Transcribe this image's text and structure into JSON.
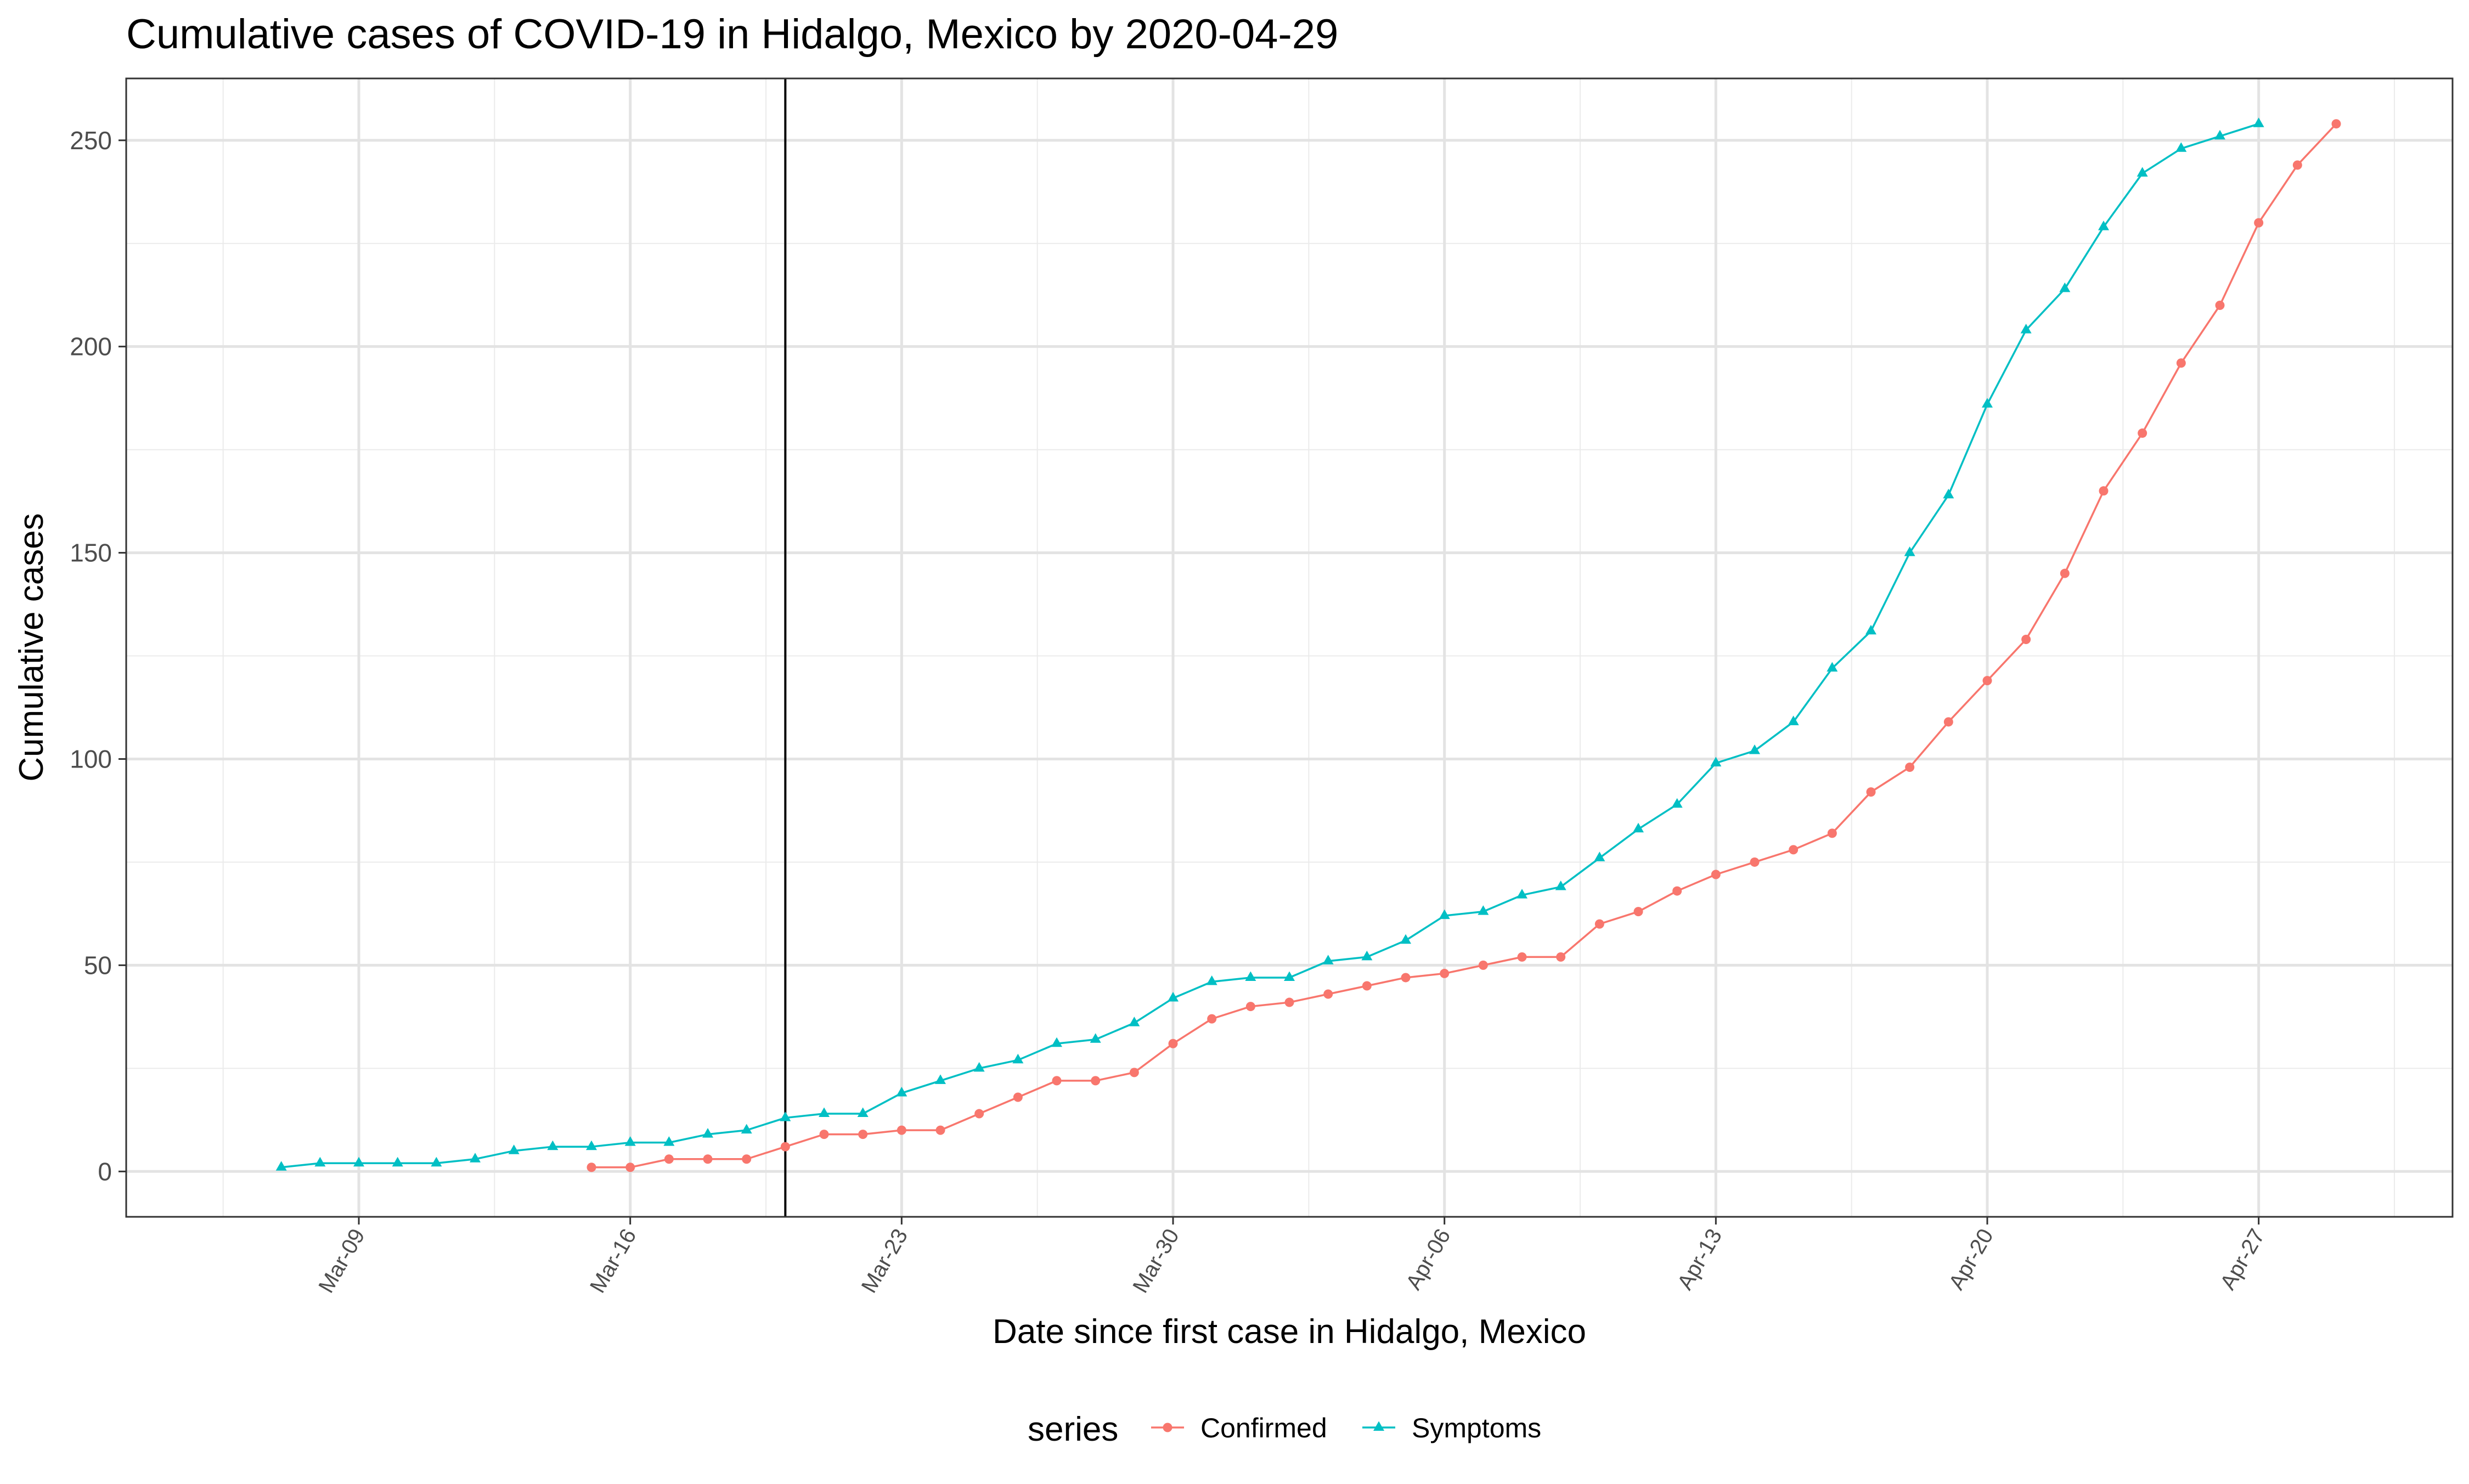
{
  "chart_data": {
    "type": "line",
    "title": "Cumulative cases of COVID-19 in Hidalgo, Mexico by 2020-04-29",
    "xlabel": "Date since first case in Hidalgo, Mexico",
    "ylabel": "Cumulative cases",
    "x_axis_type": "date",
    "xlim": [
      "2020-03-03",
      "2020-05-02"
    ],
    "ylim": [
      -11,
      265
    ],
    "x_tick_dates": [
      "2020-03-09",
      "2020-03-16",
      "2020-03-23",
      "2020-03-30",
      "2020-04-06",
      "2020-04-13",
      "2020-04-20",
      "2020-04-27"
    ],
    "x_tick_labels": [
      "Mar-09",
      "Mar-16",
      "Mar-23",
      "Mar-30",
      "Apr-06",
      "Apr-13",
      "Apr-20",
      "Apr-27"
    ],
    "y_ticks": [
      0,
      50,
      100,
      150,
      200,
      250
    ],
    "y_tick_labels": [
      "0",
      "50",
      "100",
      "150",
      "200",
      "250"
    ],
    "vline_date": "2020-03-20",
    "grid": true,
    "legend_position": "bottom",
    "legend_title": "series",
    "series": [
      {
        "name": "Confirmed",
        "color": "#F8766D",
        "marker": "circle",
        "start_date": "2020-03-15",
        "values": [
          1,
          1,
          3,
          3,
          3,
          6,
          9,
          9,
          10,
          10,
          14,
          18,
          22,
          22,
          24,
          31,
          37,
          40,
          41,
          43,
          45,
          47,
          48,
          50,
          52,
          52,
          60,
          63,
          68,
          72,
          75,
          78,
          82,
          92,
          98,
          109,
          119,
          129,
          145,
          165,
          179,
          196,
          210,
          230,
          244,
          254
        ]
      },
      {
        "name": "Symptoms",
        "color": "#00BFC4",
        "marker": "triangle",
        "start_date": "2020-03-07",
        "values": [
          1,
          2,
          2,
          2,
          2,
          3,
          5,
          6,
          6,
          7,
          7,
          9,
          10,
          13,
          14,
          14,
          19,
          22,
          25,
          27,
          31,
          32,
          36,
          42,
          46,
          47,
          47,
          51,
          52,
          56,
          62,
          63,
          67,
          69,
          76,
          83,
          89,
          99,
          102,
          109,
          122,
          131,
          150,
          164,
          186,
          204,
          214,
          229,
          242,
          248,
          251,
          254
        ]
      }
    ]
  }
}
